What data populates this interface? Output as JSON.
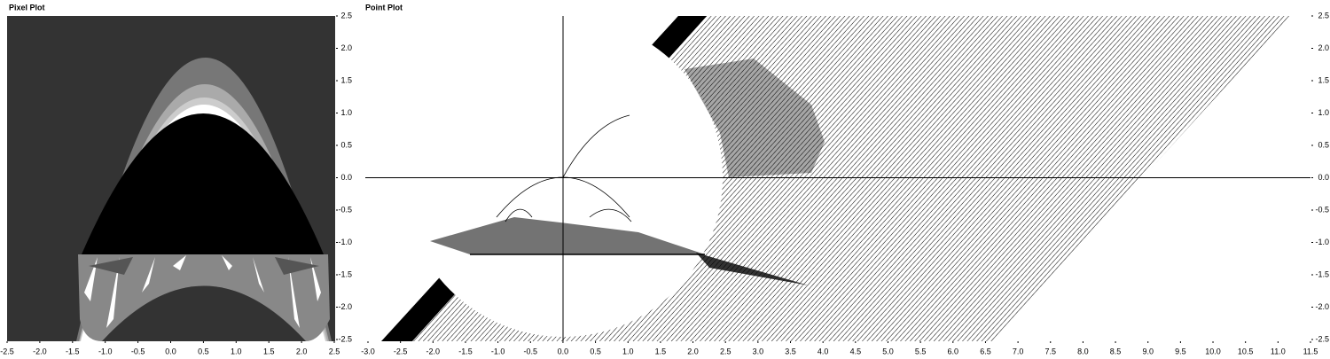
{
  "chart_data": [
    {
      "type": "heatmap",
      "title": "Pixel Plot",
      "xlim": [
        -2.5,
        2.5
      ],
      "ylim": [
        -2.5,
        2.5
      ],
      "xticks": [
        -2.5,
        {
          "value": -2,
          "label": "-2.0"
        },
        -1.5,
        {
          "value": -1,
          "label": "-1.0"
        },
        -0.5,
        {
          "value": 0,
          "label": "0.0"
        },
        0.5,
        {
          "value": 1,
          "label": "1.0"
        },
        1.5,
        {
          "value": 2,
          "label": "2.0"
        },
        2.5
      ],
      "yticks": [
        -2.5,
        {
          "value": -2,
          "label": "-2.0"
        },
        -1.5,
        {
          "value": -1,
          "label": "-1.0"
        },
        -0.5,
        {
          "value": 0,
          "label": "0.0"
        },
        0.5,
        {
          "value": 1,
          "label": "1.0"
        },
        1.5,
        {
          "value": 2,
          "label": "2.0"
        },
        2.5
      ]
    },
    {
      "type": "scatter",
      "title": "Point Plot",
      "xlim": [
        -3,
        11.5
      ],
      "ylim": [
        -2.5,
        2.5
      ],
      "xticks": [
        {
          "value": -3,
          "label": "-3.0"
        },
        -2.5,
        {
          "value": -2,
          "label": "-2.0"
        },
        -1.5,
        {
          "value": -1,
          "label": "-1.0"
        },
        -0.5,
        {
          "value": 0,
          "label": "0.0"
        },
        0.5,
        {
          "value": 1,
          "label": "1.0"
        },
        1.5,
        {
          "value": 2,
          "label": "2.0"
        },
        2.5,
        {
          "value": 3,
          "label": "3.0"
        },
        3.5,
        {
          "value": 4,
          "label": "4.0"
        },
        4.5,
        {
          "value": 5,
          "label": "5.0"
        },
        5.5,
        {
          "value": 6,
          "label": "6.0"
        },
        6.5,
        {
          "value": 7,
          "label": "7.0"
        },
        7.5,
        {
          "value": 8,
          "label": "8.0"
        },
        8.5,
        {
          "value": 9,
          "label": "9.0"
        },
        9.5,
        {
          "value": 10,
          "label": "10.0"
        },
        10.5,
        {
          "value": 11,
          "label": "11.0"
        },
        11.5
      ],
      "yticks": [
        -2.5,
        {
          "value": -2,
          "label": "-2.0"
        },
        -1.5,
        {
          "value": -1,
          "label": "-1.0"
        },
        -0.5,
        {
          "value": 0,
          "label": "0.0"
        },
        0.5,
        {
          "value": 1,
          "label": "1.0"
        },
        1.5,
        {
          "value": 2,
          "label": "2.0"
        },
        2.5
      ]
    }
  ]
}
